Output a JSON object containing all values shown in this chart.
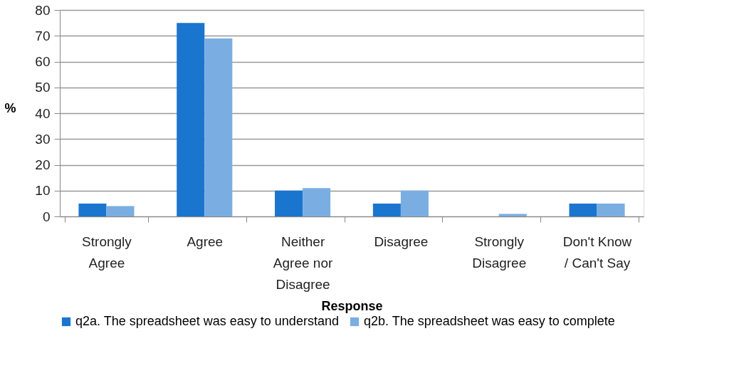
{
  "chart_data": {
    "type": "bar",
    "xlabel": "Response",
    "ylabel": "%",
    "categories": [
      "Strongly Agree",
      "Agree",
      "Neither Agree nor Disagree",
      "Disagree",
      "Strongly Disagree",
      "Don't Know / Can't Say"
    ],
    "series": [
      {
        "name": "q2a. The spreadsheet was easy to understand",
        "color": "#1a75cf",
        "values": [
          5,
          75,
          10,
          5,
          0,
          5
        ]
      },
      {
        "name": "q2b. The spreadsheet was easy to complete",
        "color": "#7aaee2",
        "values": [
          4,
          69,
          11,
          10,
          1,
          5
        ]
      }
    ],
    "ylim": [
      0,
      80
    ],
    "yticks": [
      0,
      10,
      20,
      30,
      40,
      50,
      60,
      70,
      80
    ],
    "grid": "y",
    "legend": "bottom"
  }
}
